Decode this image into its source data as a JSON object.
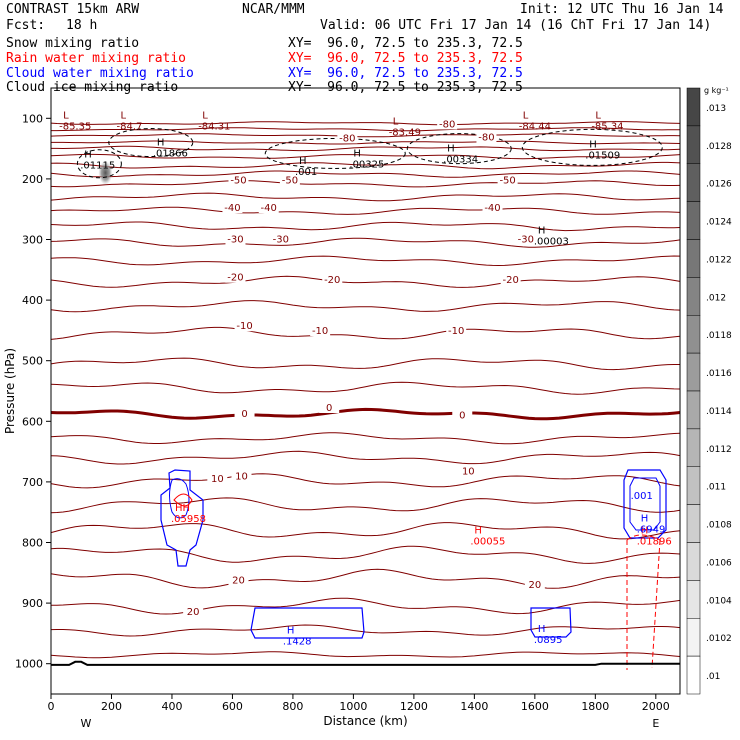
{
  "header": {
    "model": "CONTRAST 15km ARW",
    "org": "NCAR/MMM",
    "init": "Init: 12 UTC Thu 16 Jan 14",
    "fcst_label": "Fcst:",
    "fcst_value": "18 h",
    "valid": "Valid: 06 UTC Fri 17 Jan 14 (16 ChT Fri 17 Jan 14)"
  },
  "fields": [
    {
      "name": "Snow mixing ratio",
      "xy": "XY=  96.0, 72.5 to 235.3, 72.5",
      "color": "#000000"
    },
    {
      "name": "Rain water mixing ratio",
      "xy": "XY=  96.0, 72.5 to 235.3, 72.5",
      "color": "#ff0000"
    },
    {
      "name": "Cloud water mixing ratio",
      "xy": "XY=  96.0, 72.5 to 235.3, 72.5",
      "color": "#0000ff"
    },
    {
      "name": "Cloud ice mixing ratio",
      "xy": "XY=  96.0, 72.5 to 235.3, 72.5",
      "color": "#000000"
    }
  ],
  "colors": {
    "temperature": "#800000",
    "freezing": "#800000",
    "snow": "#000000",
    "rain": "#ff0000",
    "cloud_water": "#0000ff",
    "cloud_ice": "#000000",
    "terrain": "#000000"
  },
  "chart_data": {
    "type": "cross-section",
    "xlabel": "Distance (km)",
    "ylabel": "Pressure (hPa)",
    "xlim": [
      0,
      2080
    ],
    "ylim": [
      1050,
      50
    ],
    "x_ticks": [
      0,
      200,
      400,
      600,
      800,
      1000,
      1200,
      1400,
      1600,
      1800,
      2000
    ],
    "y_ticks": [
      100,
      200,
      300,
      400,
      500,
      600,
      700,
      800,
      900,
      1000
    ],
    "x_endpoints": {
      "left": "W",
      "right": "E"
    },
    "colorbar": {
      "unit": "g kg⁻¹",
      "ticks": [
        ".013",
        ".0128",
        ".0126",
        ".0124",
        ".0122",
        ".012",
        ".0118",
        ".0116",
        ".0114",
        ".0112",
        ".011",
        ".0108",
        ".0106",
        ".0104",
        ".0102",
        ".01"
      ]
    },
    "temperature_contour_labels": [
      {
        "x": 1310,
        "p": 115,
        "text": "-80"
      },
      {
        "x": 980,
        "p": 138,
        "text": "-80"
      },
      {
        "x": 1440,
        "p": 137,
        "text": "-80"
      },
      {
        "x": 620,
        "p": 208,
        "text": "-50"
      },
      {
        "x": 790,
        "p": 208,
        "text": "-50"
      },
      {
        "x": 1510,
        "p": 208,
        "text": "-50"
      },
      {
        "x": 600,
        "p": 253,
        "text": "-40"
      },
      {
        "x": 720,
        "p": 253,
        "text": "-40"
      },
      {
        "x": 1460,
        "p": 253,
        "text": "-40"
      },
      {
        "x": 610,
        "p": 305,
        "text": "-30"
      },
      {
        "x": 760,
        "p": 305,
        "text": "-30"
      },
      {
        "x": 1570,
        "p": 305,
        "text": "-30"
      },
      {
        "x": 610,
        "p": 368,
        "text": "-20"
      },
      {
        "x": 930,
        "p": 372,
        "text": "-20"
      },
      {
        "x": 1520,
        "p": 372,
        "text": "-20"
      },
      {
        "x": 640,
        "p": 448,
        "text": "-10"
      },
      {
        "x": 890,
        "p": 456,
        "text": "-10"
      },
      {
        "x": 1340,
        "p": 456,
        "text": "-10"
      },
      {
        "x": 640,
        "p": 593,
        "text": "0"
      },
      {
        "x": 920,
        "p": 583,
        "text": "0"
      },
      {
        "x": 1360,
        "p": 595,
        "text": "0"
      },
      {
        "x": 550,
        "p": 700,
        "text": "10"
      },
      {
        "x": 630,
        "p": 696,
        "text": "10"
      },
      {
        "x": 1380,
        "p": 688,
        "text": "10"
      },
      {
        "x": 620,
        "p": 868,
        "text": "20"
      },
      {
        "x": 470,
        "p": 920,
        "text": "20"
      },
      {
        "x": 1600,
        "p": 875,
        "text": "20"
      }
    ],
    "extrema": [
      {
        "x": 40,
        "p": 100,
        "type": "L",
        "value": "-85.35",
        "color": "#800000"
      },
      {
        "x": 230,
        "p": 100,
        "type": "L",
        "value": "-84.7",
        "color": "#800000"
      },
      {
        "x": 500,
        "p": 100,
        "type": "L",
        "value": "-84.31",
        "color": "#800000"
      },
      {
        "x": 1130,
        "p": 110,
        "type": "L",
        "value": "-83.49",
        "color": "#800000"
      },
      {
        "x": 1560,
        "p": 100,
        "type": "L",
        "value": "-84.44",
        "color": "#800000"
      },
      {
        "x": 1800,
        "p": 100,
        "type": "L",
        "value": "-85.34",
        "color": "#800000"
      },
      {
        "x": 110,
        "p": 165,
        "type": "H",
        "value": ".01115",
        "color": "#000000"
      },
      {
        "x": 350,
        "p": 145,
        "type": "H",
        "value": ".01866",
        "color": "#000000"
      },
      {
        "x": 820,
        "p": 175,
        "type": "H",
        "value": ".001",
        "color": "#000000"
      },
      {
        "x": 1000,
        "p": 163,
        "type": "H",
        "value": ".00325",
        "color": "#000000"
      },
      {
        "x": 1310,
        "p": 155,
        "type": "H",
        "value": ".00334",
        "color": "#000000"
      },
      {
        "x": 1780,
        "p": 148,
        "type": "H",
        "value": ".01509",
        "color": "#000000"
      },
      {
        "x": 1610,
        "p": 290,
        "type": "H",
        "value": ".00003",
        "color": "#000000"
      },
      {
        "x": 410,
        "p": 748,
        "type": "HH",
        "value": ".05958",
        "color": "#ff0000"
      },
      {
        "x": 1400,
        "p": 785,
        "type": "H",
        "value": ".00055",
        "color": "#ff0000"
      },
      {
        "x": 1950,
        "p": 785,
        "type": "H",
        "value": ".01896",
        "color": "#ff0000"
      },
      {
        "x": 1930,
        "p": 710,
        "type": "",
        "value": ".001",
        "color": "#0000ff"
      },
      {
        "x": 1950,
        "p": 765,
        "type": "H",
        "value": ".6949",
        "color": "#0000ff"
      },
      {
        "x": 780,
        "p": 950,
        "type": "H",
        "value": ".1428",
        "color": "#0000ff"
      },
      {
        "x": 1610,
        "p": 948,
        "type": "H",
        "value": ".0895",
        "color": "#0000ff"
      }
    ],
    "snow_blob": {
      "x": 180,
      "p": 190
    },
    "grid": false,
    "legend": "top-left"
  }
}
